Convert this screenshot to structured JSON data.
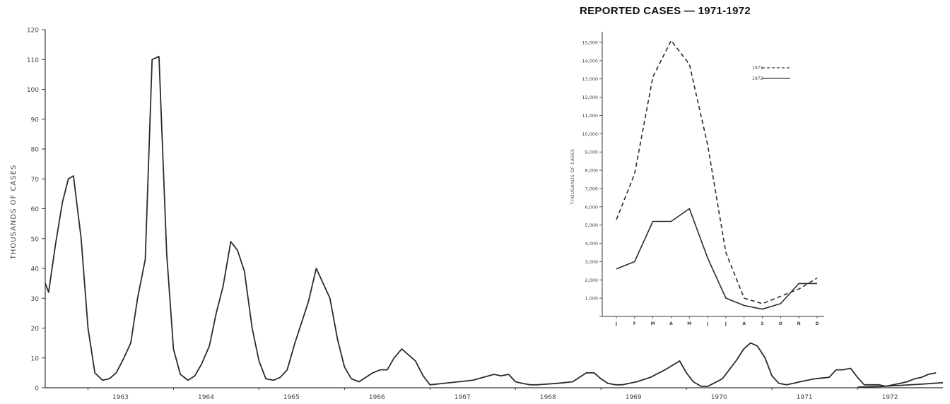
{
  "chart_data": [
    {
      "type": "line",
      "title": "",
      "ylabel": "THOUSANDS OF CASES",
      "xlabel": "",
      "ylim": [
        0,
        120
      ],
      "xlim": [
        1962.5,
        1973.0
      ],
      "yticks": [
        0,
        10,
        20,
        30,
        40,
        50,
        60,
        70,
        80,
        90,
        100,
        110,
        120
      ],
      "xtick_labels": [
        "1963",
        "1964",
        "1965",
        "1966",
        "1967",
        "1968",
        "1969",
        "1970",
        "1971",
        "1972"
      ],
      "xtick_positions": [
        1963.0,
        1964.0,
        1965.0,
        1966.0,
        1967.0,
        1968.0,
        1969.0,
        1970.0,
        1971.0,
        1972.0
      ],
      "grid": false,
      "series": [
        {
          "style": "solid",
          "x": [
            1962.5,
            1962.54,
            1962.62,
            1962.7,
            1962.77,
            1962.83,
            1962.92,
            1963.0,
            1963.08,
            1963.17,
            1963.25,
            1963.33,
            1963.42,
            1963.5,
            1963.58,
            1963.67,
            1963.75,
            1963.83,
            1963.92,
            1964.0,
            1964.08,
            1964.17,
            1964.25,
            1964.33,
            1964.42,
            1964.5,
            1964.58,
            1964.67,
            1964.75,
            1964.83,
            1964.92,
            1965.0,
            1965.08,
            1965.17,
            1965.25,
            1965.33,
            1965.42,
            1965.5,
            1965.58,
            1965.67,
            1965.75,
            1965.83,
            1965.92,
            1966.0,
            1966.08,
            1966.17,
            1966.25,
            1966.33,
            1966.42,
            1966.5,
            1966.58,
            1966.67,
            1966.75,
            1966.83,
            1966.92,
            1967.0,
            1967.5,
            1967.75,
            1967.83,
            1967.92,
            1968.0,
            1968.08,
            1968.17,
            1968.25,
            1968.5,
            1968.67,
            1968.83,
            1968.92,
            1969.0,
            1969.08,
            1969.17,
            1969.25,
            1969.42,
            1969.58,
            1969.75,
            1969.92,
            1970.0,
            1970.08,
            1970.17,
            1970.25,
            1970.42,
            1970.58,
            1970.67,
            1970.75,
            1970.83,
            1970.92,
            1971.0,
            1971.08,
            1971.17,
            1971.25,
            1971.33,
            1971.5,
            1971.67,
            1971.75,
            1971.83,
            1971.92,
            1972.0,
            1972.08,
            1972.17,
            1972.25,
            1972.33,
            1972.42,
            1972.5,
            1972.58,
            1972.67,
            1972.75,
            1972.83,
            1972.92
          ],
          "values": [
            35,
            32,
            48,
            62,
            70,
            71,
            50,
            20,
            5,
            2.5,
            3,
            5,
            10,
            15,
            30,
            43,
            110,
            111,
            45,
            13,
            4.5,
            2.5,
            4,
            8,
            14,
            25,
            34,
            49,
            46,
            39,
            20,
            9,
            3,
            2.5,
            3.5,
            6,
            15,
            22,
            29,
            40,
            35,
            30,
            16,
            7,
            3,
            2,
            3.5,
            5,
            6,
            6,
            10,
            13,
            11,
            9,
            4,
            1,
            2.5,
            4.5,
            4,
            4.5,
            2,
            1.5,
            1,
            1,
            1.5,
            2,
            5,
            5,
            3,
            1.5,
            1,
            1,
            2,
            3.5,
            6,
            9,
            5,
            2,
            0.5,
            0.5,
            3,
            9,
            13,
            15,
            14,
            10,
            4,
            1.5,
            1,
            1.5,
            2,
            3,
            3.5,
            6,
            6,
            6.5,
            3.5,
            1,
            1,
            1,
            0.5,
            1,
            1.5,
            2,
            3,
            3.5,
            4.5,
            5
          ]
        },
        {
          "style": "solid",
          "x": [
            1972.0,
            1972.25,
            1972.5,
            1972.75,
            1973.0
          ],
          "values": [
            0.2,
            0.4,
            0.8,
            1.2,
            1.7
          ]
        }
      ]
    },
    {
      "type": "line",
      "title": "REPORTED CASES — 1971-1972",
      "ylabel": "THOUSANDS OF CASES",
      "xlabel": "",
      "ylim": [
        0,
        15000
      ],
      "yticks": [
        0,
        1000,
        2000,
        3000,
        4000,
        5000,
        6000,
        7000,
        8000,
        9000,
        10000,
        11000,
        12000,
        13000,
        14000,
        15000
      ],
      "ytick_labels": [
        "",
        "1,000",
        "2,000",
        "3,000",
        "4,000",
        "5,000",
        "6,000",
        "7,000",
        "8,000",
        "9,000",
        "10,000",
        "11,000",
        "12,000",
        "13,000",
        "14,000",
        "15,000"
      ],
      "categories": [
        "J",
        "F",
        "M",
        "A",
        "M",
        "J",
        "J",
        "A",
        "S",
        "O",
        "N",
        "D"
      ],
      "grid": false,
      "legend_position": "top-right",
      "series": [
        {
          "name": "1971",
          "style": "dashed",
          "values": [
            5300,
            7800,
            13100,
            15100,
            13800,
            9400,
            3500,
            1000,
            700,
            1100,
            1500,
            2100
          ]
        },
        {
          "name": "1972",
          "style": "solid",
          "values": [
            2600,
            3000,
            5200,
            5200,
            5900,
            3200,
            1000,
            600,
            400,
            700,
            1800,
            1800
          ]
        }
      ]
    }
  ]
}
